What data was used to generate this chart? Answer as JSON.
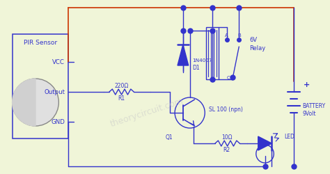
{
  "bg_color": "#f0f5d8",
  "bc": "#3333cc",
  "rc": "#cc3300",
  "tc": "#3333cc",
  "wm_color": "#c8c8c8",
  "labels": {
    "pir": "PIR Sensor",
    "vcc": "VCC",
    "output": "Output",
    "gnd": "GND",
    "r1_val": "220Ω",
    "r1": "R1",
    "r2_val": "10Ω",
    "r2": "R2",
    "d1_val": "1N4007",
    "d1": "D1",
    "q1": "Q1",
    "q1_type": "SL 100 (npn)",
    "relay_v": "6V",
    "relay": "Relay",
    "battery": "BATTERY\n9Volt",
    "led": "LED",
    "plus": "+"
  }
}
